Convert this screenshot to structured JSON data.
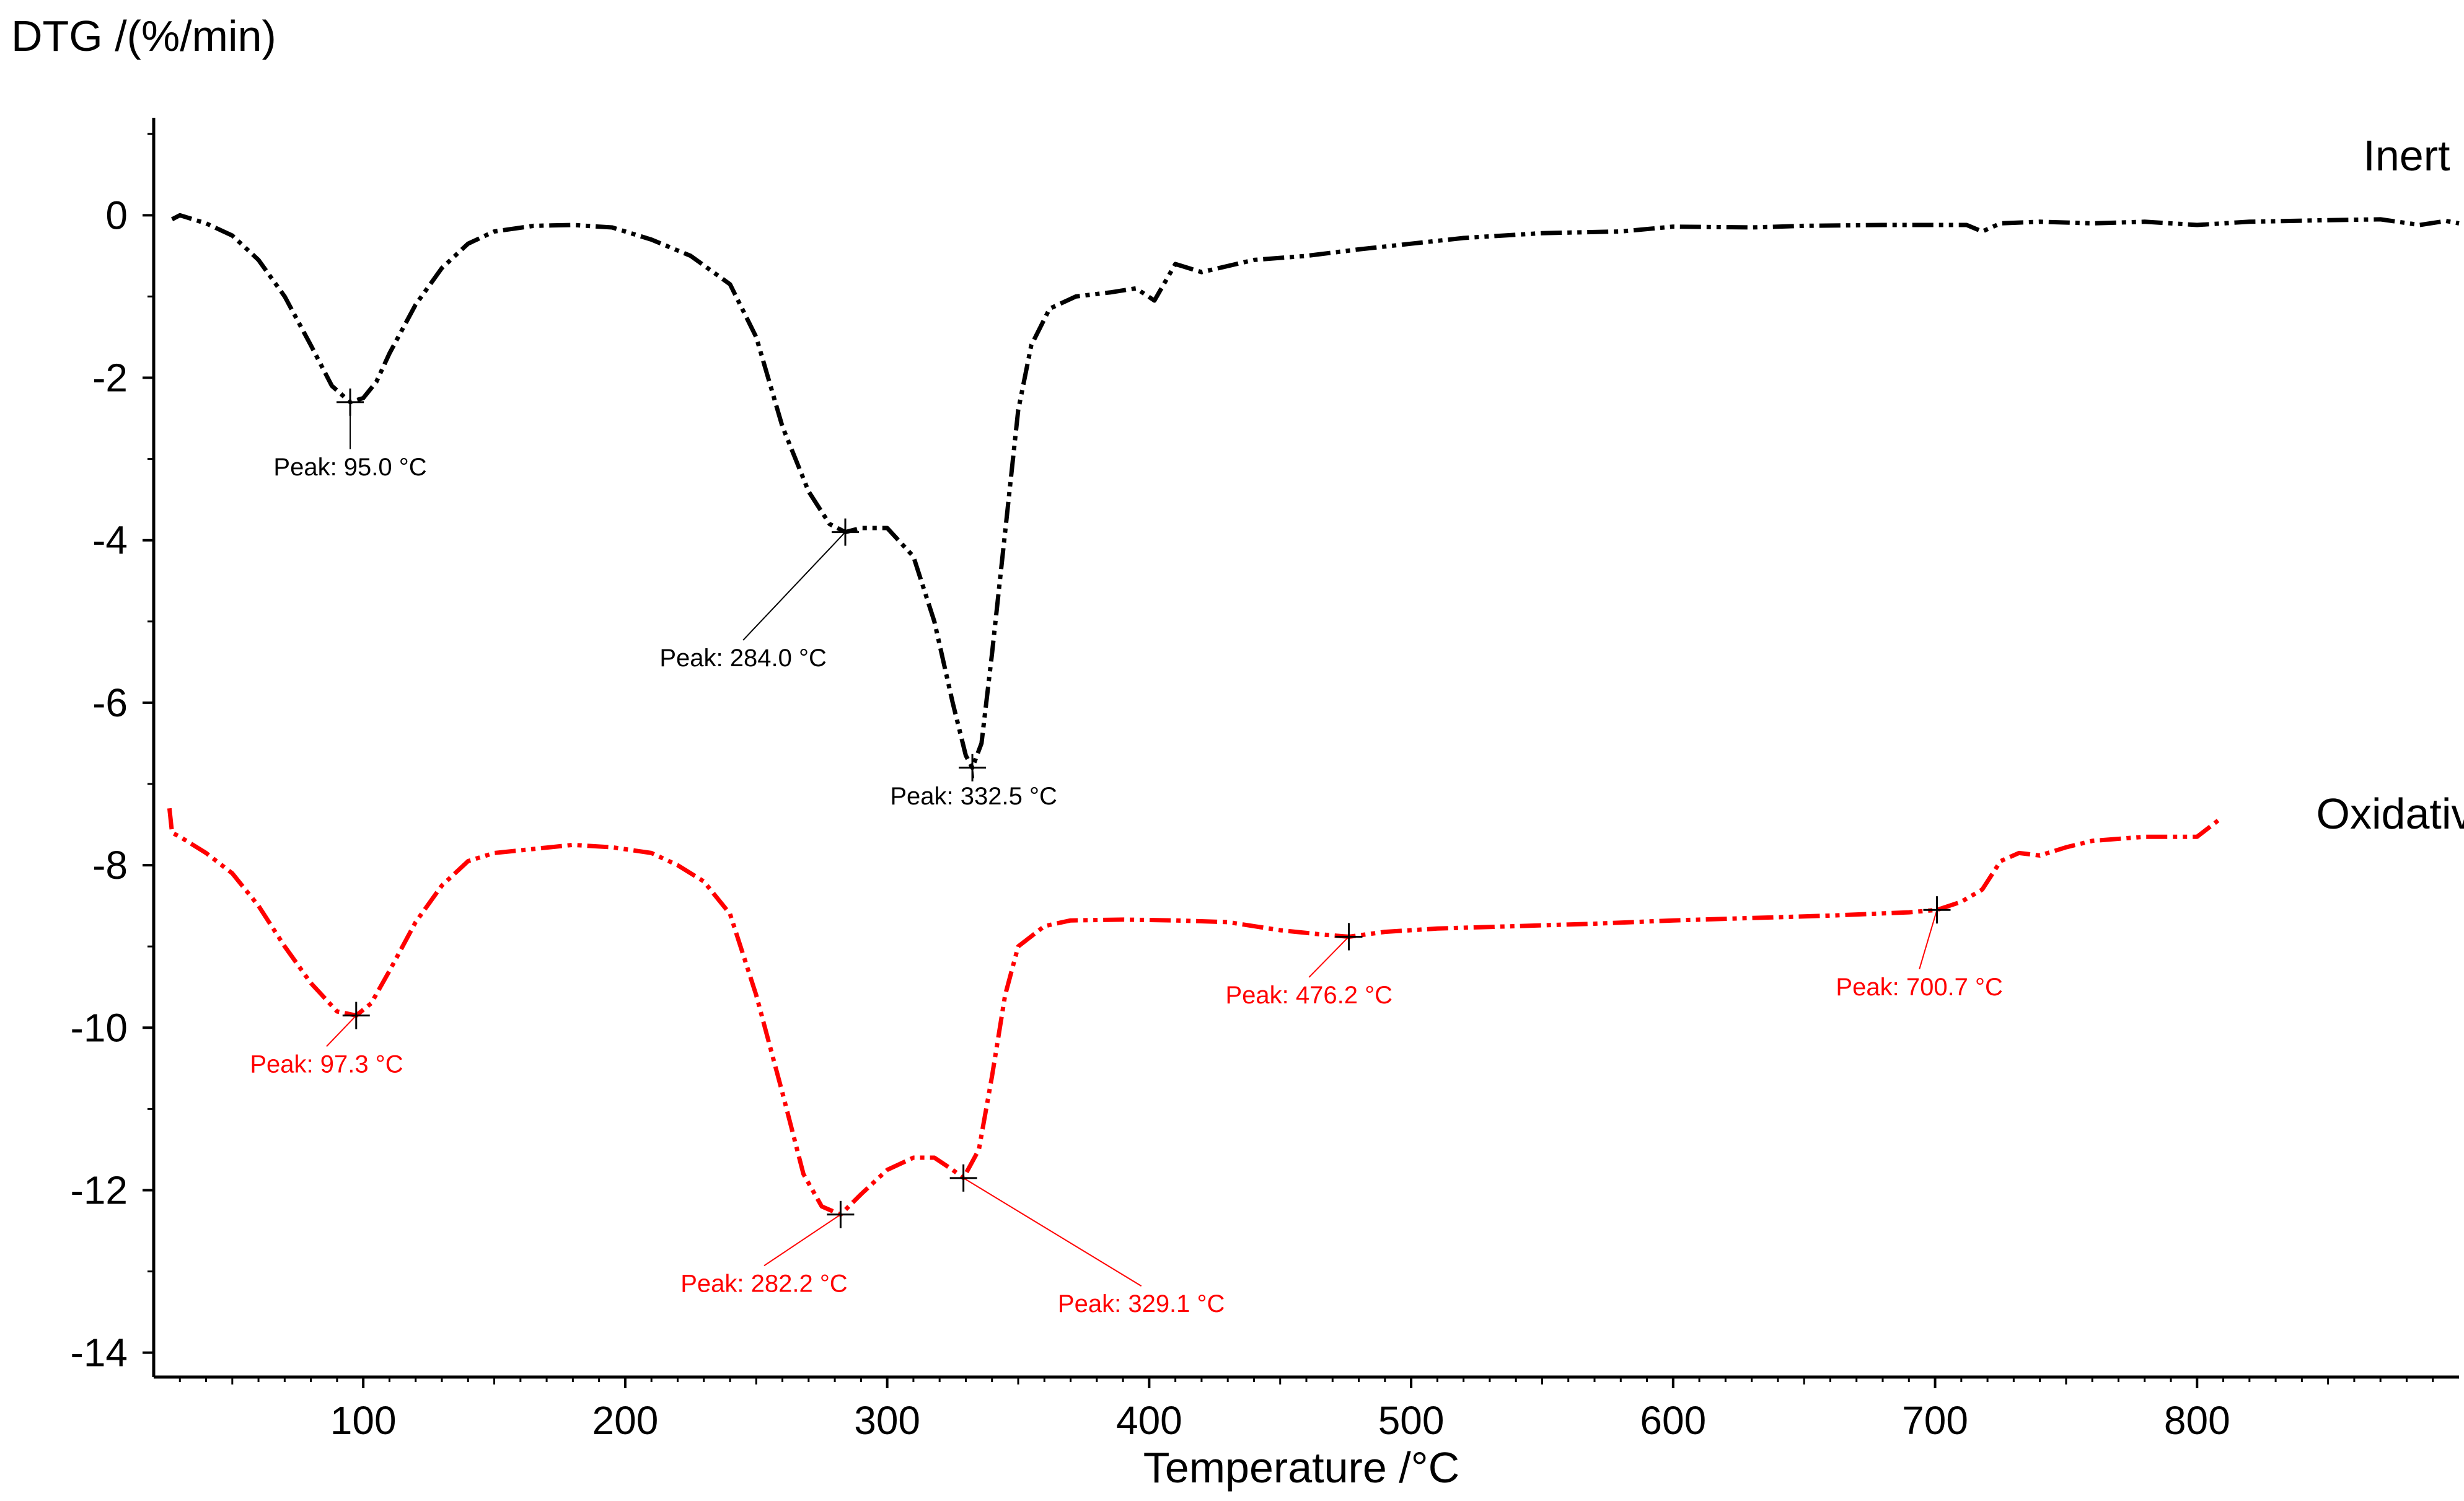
{
  "chart_data": {
    "type": "line",
    "title": "",
    "ylabel": "DTG /(%/min)",
    "xlabel": "Temperature /°C",
    "xlim": [
      20,
      900
    ],
    "ylim": [
      -14.3,
      1.2
    ],
    "xticks": [
      100,
      200,
      300,
      400,
      500,
      600,
      700,
      800
    ],
    "xtick_labels": [
      "100",
      "200",
      "300",
      "400",
      "500",
      "600",
      "700",
      "800"
    ],
    "yticks": [
      0,
      -2,
      -4,
      -6,
      -8,
      -10,
      -12,
      -14
    ],
    "ytick_labels": [
      "0",
      "-2",
      "-4",
      "-6",
      "-8",
      "-10",
      "-12",
      "-14"
    ],
    "grid": false,
    "series": [
      {
        "name": "Inert",
        "color": "#000000",
        "points": [
          [
            27,
            -0.05
          ],
          [
            30,
            0.0
          ],
          [
            40,
            -0.1
          ],
          [
            50,
            -0.25
          ],
          [
            60,
            -0.55
          ],
          [
            70,
            -1.0
          ],
          [
            80,
            -1.6
          ],
          [
            88,
            -2.1
          ],
          [
            95,
            -2.3
          ],
          [
            100,
            -2.25
          ],
          [
            105,
            -2.05
          ],
          [
            110,
            -1.7
          ],
          [
            120,
            -1.1
          ],
          [
            130,
            -0.65
          ],
          [
            140,
            -0.35
          ],
          [
            150,
            -0.2
          ],
          [
            165,
            -0.13
          ],
          [
            180,
            -0.12
          ],
          [
            195,
            -0.15
          ],
          [
            210,
            -0.3
          ],
          [
            225,
            -0.5
          ],
          [
            240,
            -0.85
          ],
          [
            250,
            -1.5
          ],
          [
            260,
            -2.6
          ],
          [
            270,
            -3.4
          ],
          [
            278,
            -3.8
          ],
          [
            284,
            -3.9
          ],
          [
            290,
            -3.85
          ],
          [
            300,
            -3.85
          ],
          [
            310,
            -4.2
          ],
          [
            318,
            -5.0
          ],
          [
            325,
            -6.0
          ],
          [
            330,
            -6.65
          ],
          [
            332.5,
            -6.8
          ],
          [
            336,
            -6.5
          ],
          [
            340,
            -5.4
          ],
          [
            345,
            -3.9
          ],
          [
            350,
            -2.4
          ],
          [
            355,
            -1.6
          ],
          [
            362,
            -1.15
          ],
          [
            372,
            -1.0
          ],
          [
            385,
            -0.95
          ],
          [
            395,
            -0.9
          ],
          [
            402,
            -1.05
          ],
          [
            410,
            -0.6
          ],
          [
            420,
            -0.7
          ],
          [
            440,
            -0.55
          ],
          [
            460,
            -0.5
          ],
          [
            480,
            -0.42
          ],
          [
            500,
            -0.35
          ],
          [
            520,
            -0.28
          ],
          [
            550,
            -0.22
          ],
          [
            580,
            -0.2
          ],
          [
            600,
            -0.14
          ],
          [
            630,
            -0.15
          ],
          [
            650,
            -0.13
          ],
          [
            680,
            -0.12
          ],
          [
            700,
            -0.12
          ],
          [
            712,
            -0.12
          ],
          [
            718,
            -0.2
          ],
          [
            725,
            -0.1
          ],
          [
            740,
            -0.08
          ],
          [
            760,
            -0.1
          ],
          [
            780,
            -0.08
          ],
          [
            800,
            -0.12
          ],
          [
            820,
            -0.08
          ],
          [
            850,
            -0.06
          ],
          [
            870,
            -0.05
          ],
          [
            885,
            -0.12
          ],
          [
            895,
            -0.07
          ],
          [
            900,
            -0.1
          ]
        ]
      },
      {
        "name": "Oxidative",
        "color": "#ff0000",
        "points": [
          [
            26,
            -7.3
          ],
          [
            27,
            -7.6
          ],
          [
            30,
            -7.65
          ],
          [
            40,
            -7.85
          ],
          [
            50,
            -8.1
          ],
          [
            60,
            -8.5
          ],
          [
            70,
            -9.0
          ],
          [
            80,
            -9.45
          ],
          [
            90,
            -9.8
          ],
          [
            97.3,
            -9.85
          ],
          [
            103,
            -9.7
          ],
          [
            110,
            -9.3
          ],
          [
            120,
            -8.7
          ],
          [
            130,
            -8.25
          ],
          [
            140,
            -7.95
          ],
          [
            150,
            -7.85
          ],
          [
            165,
            -7.8
          ],
          [
            180,
            -7.75
          ],
          [
            195,
            -7.78
          ],
          [
            210,
            -7.85
          ],
          [
            220,
            -8.0
          ],
          [
            230,
            -8.2
          ],
          [
            240,
            -8.6
          ],
          [
            250,
            -9.6
          ],
          [
            260,
            -10.8
          ],
          [
            268,
            -11.8
          ],
          [
            275,
            -12.2
          ],
          [
            282.2,
            -12.3
          ],
          [
            290,
            -12.05
          ],
          [
            300,
            -11.75
          ],
          [
            310,
            -11.6
          ],
          [
            318,
            -11.6
          ],
          [
            325,
            -11.75
          ],
          [
            329.1,
            -11.85
          ],
          [
            335,
            -11.5
          ],
          [
            340,
            -10.6
          ],
          [
            345,
            -9.6
          ],
          [
            350,
            -9.0
          ],
          [
            360,
            -8.75
          ],
          [
            370,
            -8.68
          ],
          [
            390,
            -8.67
          ],
          [
            410,
            -8.68
          ],
          [
            430,
            -8.7
          ],
          [
            450,
            -8.8
          ],
          [
            465,
            -8.85
          ],
          [
            476.2,
            -8.88
          ],
          [
            490,
            -8.82
          ],
          [
            510,
            -8.78
          ],
          [
            540,
            -8.75
          ],
          [
            570,
            -8.72
          ],
          [
            600,
            -8.68
          ],
          [
            630,
            -8.65
          ],
          [
            660,
            -8.62
          ],
          [
            690,
            -8.58
          ],
          [
            700.7,
            -8.55
          ],
          [
            710,
            -8.45
          ],
          [
            718,
            -8.3
          ],
          [
            725,
            -7.95
          ],
          [
            732,
            -7.85
          ],
          [
            740,
            -7.88
          ],
          [
            750,
            -7.78
          ],
          [
            760,
            -7.7
          ],
          [
            780,
            -7.65
          ],
          [
            800,
            -7.65
          ],
          [
            808,
            -7.45
          ]
        ]
      }
    ],
    "series_labels": [
      {
        "text": "Inert",
        "x": 880,
        "y": 0.55
      },
      {
        "text": "Oxidative",
        "x": 880,
        "y": -7.55
      }
    ],
    "annotations": [
      {
        "text": "Peak: 95.0 °C",
        "series": "Inert",
        "px": 95.0,
        "py": -2.3,
        "lx": 95,
        "ly": -3.2,
        "color": "#000000"
      },
      {
        "text": "Peak: 284.0 °C",
        "series": "Inert",
        "px": 284.0,
        "py": -3.9,
        "lx": 245,
        "ly": -5.55,
        "color": "#000000"
      },
      {
        "text": "Peak: 332.5 °C",
        "series": "Inert",
        "px": 332.5,
        "py": -6.8,
        "lx": 333,
        "ly": -7.25,
        "color": "#000000"
      },
      {
        "text": "Peak: 97.3 °C",
        "series": "Oxidative",
        "px": 97.3,
        "py": -9.85,
        "lx": 86,
        "ly": -10.55,
        "color": "#ff0000"
      },
      {
        "text": "Peak: 282.2 °C",
        "series": "Oxidative",
        "px": 282.2,
        "py": -12.3,
        "lx": 253,
        "ly": -13.25,
        "color": "#ff0000"
      },
      {
        "text": "Peak: 329.1 °C",
        "series": "Oxidative",
        "px": 329.1,
        "py": -11.85,
        "lx": 397,
        "ly": -13.5,
        "color": "#ff0000"
      },
      {
        "text": "Peak: 476.2 °C",
        "series": "Oxidative",
        "px": 476.2,
        "py": -8.88,
        "lx": 461,
        "ly": -9.7,
        "color": "#ff0000"
      },
      {
        "text": "Peak: 700.7 °C",
        "series": "Oxidative",
        "px": 700.7,
        "py": -8.55,
        "lx": 694,
        "ly": -9.6,
        "color": "#ff0000"
      }
    ]
  }
}
